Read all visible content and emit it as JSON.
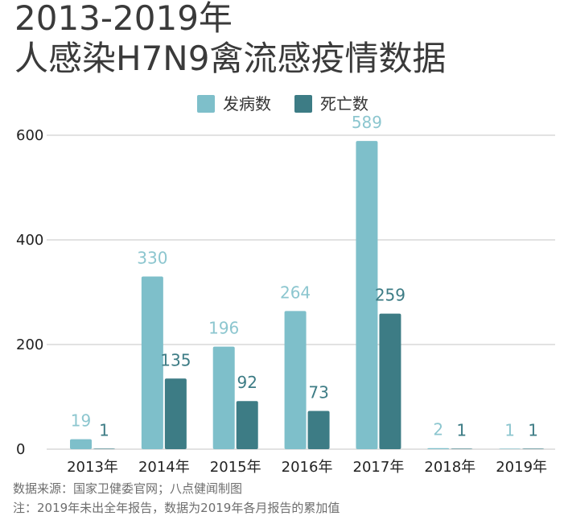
{
  "title_lines": [
    "2013-2019年",
    "人感染H7N9禽流感疫情数据"
  ],
  "footnotes": {
    "source": "数据来源：国家卫健委官网；八点健闻制图",
    "note": "注：2019年未出全年报告，数据为2019年各月报告的累加值"
  },
  "colors": {
    "cases": "#7ebfca",
    "deaths": "#3d7c85",
    "cases_label": "#8cc6cf",
    "deaths_label": "#3d7c85",
    "grid": "#d9d9d9",
    "axis_text": "#222222"
  },
  "chart_data": {
    "type": "bar",
    "categories": [
      "2013年",
      "2014年",
      "2015年",
      "2016年",
      "2017年",
      "2018年",
      "2019年"
    ],
    "series": [
      {
        "name": "发病数",
        "values": [
          19,
          330,
          196,
          264,
          589,
          2,
          1
        ]
      },
      {
        "name": "死亡数",
        "values": [
          1,
          135,
          92,
          73,
          259,
          1,
          1
        ]
      }
    ],
    "yticks": [
      0,
      200,
      400,
      600
    ],
    "ylim": [
      0,
      600
    ],
    "legend_position": "top-center",
    "grid": true
  }
}
